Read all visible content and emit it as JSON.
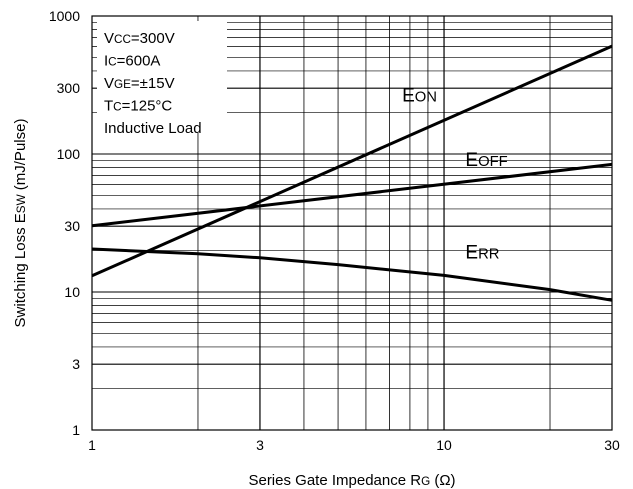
{
  "chart_data": {
    "type": "line",
    "x_scale": "log",
    "y_scale": "log",
    "xlim": [
      1,
      30
    ],
    "ylim": [
      1,
      1000
    ],
    "xlabel": {
      "main": "Series Gate Impedance R",
      "sub": "G",
      "unit": " (Ω)"
    },
    "ylabel": {
      "main": "Switching Loss E",
      "sub": "SW",
      "unit": " (mJ/Pulse)"
    },
    "x_ticks": [
      {
        "v": 1,
        "label": "1"
      },
      {
        "v": 3,
        "label": "3"
      },
      {
        "v": 10,
        "label": "10"
      },
      {
        "v": 30,
        "label": "30"
      }
    ],
    "y_ticks": [
      {
        "v": 1,
        "label": "1"
      },
      {
        "v": 3,
        "label": "3"
      },
      {
        "v": 10,
        "label": "10"
      },
      {
        "v": 30,
        "label": "30"
      },
      {
        "v": 100,
        "label": "100"
      },
      {
        "v": 300,
        "label": "300"
      },
      {
        "v": 1000,
        "label": "1000"
      }
    ],
    "grid": true,
    "conditions": [
      {
        "main": "V",
        "sub": "CC",
        "rest": "=300V"
      },
      {
        "main": "I",
        "sub": "C",
        "rest": "=600A"
      },
      {
        "main": "V",
        "sub": "GE",
        "rest": "=±15V"
      },
      {
        "main": "T",
        "sub": "C",
        "rest": "=125°C"
      },
      {
        "main": "Inductive Load",
        "sub": "",
        "rest": ""
      }
    ],
    "series": [
      {
        "name_main": "E",
        "name_sub": "ON",
        "x": [
          1,
          30
        ],
        "y": [
          13.1,
          605
        ],
        "label_at": [
          7.6,
          240
        ]
      },
      {
        "name_main": "E",
        "name_sub": "OFF",
        "x": [
          1,
          30
        ],
        "y": [
          30.2,
          84
        ],
        "label_at": [
          11.5,
          82
        ]
      },
      {
        "name_main": "E",
        "name_sub": "RR",
        "x": [
          1,
          2,
          3,
          5,
          10,
          20,
          30
        ],
        "y": [
          20.5,
          18.9,
          17.7,
          15.8,
          13.2,
          10.4,
          8.7
        ],
        "label_at": [
          11.5,
          17.5
        ]
      }
    ]
  }
}
